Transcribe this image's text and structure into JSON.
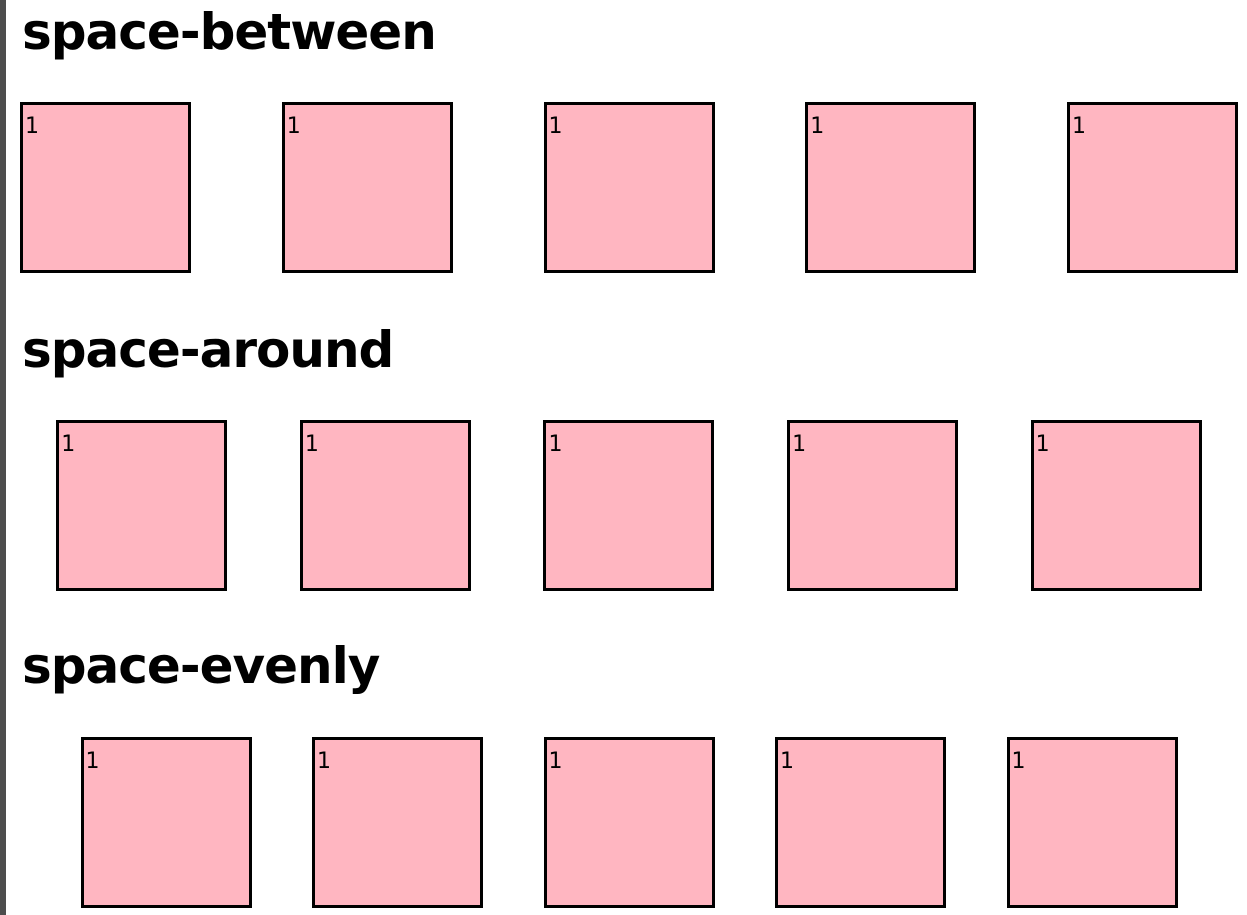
{
  "colors": {
    "box_fill": "#ffb6c1",
    "box_border": "#000000",
    "text": "#000000",
    "left_rule": "#4d4d4d"
  },
  "sections": [
    {
      "title": "space-between",
      "items": [
        "1",
        "1",
        "1",
        "1",
        "1"
      ]
    },
    {
      "title": "space-around",
      "items": [
        "1",
        "1",
        "1",
        "1",
        "1"
      ]
    },
    {
      "title": "space-evenly",
      "items": [
        "1",
        "1",
        "1",
        "1",
        "1"
      ]
    }
  ]
}
